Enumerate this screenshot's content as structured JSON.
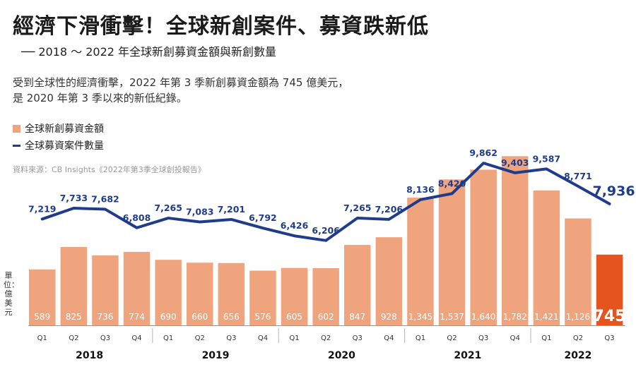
{
  "title": "經濟下滑衝擊！全球新創案件、募資跌新低",
  "subtitle": "── 2018 ～ 2022 年全球新創募資金額與新創數量",
  "description": {
    "line1": "受到全球性的經濟衝擊，2022 年第 3 季新創募資金額為 745 億美元，",
    "line2": "是 2020 年第 3 季以來的新低紀錄。"
  },
  "legend": {
    "bar_label": "全球新創募資金額",
    "line_label": "全球募資案件數量"
  },
  "source": "資料來源：CB Insights《2022年第3季全球創投報告》",
  "unit_label": "單位：億美元",
  "colors": {
    "bar": "#f0a47e",
    "bar_highlight": "#e5531e",
    "line": "#1f3c8c",
    "axis": "#999999"
  },
  "chart_data": {
    "type": "bar",
    "categories": [
      "Q1",
      "Q2",
      "Q3",
      "Q4",
      "Q1",
      "Q2",
      "Q3",
      "Q4",
      "Q1",
      "Q2",
      "Q3",
      "Q4",
      "Q1",
      "Q2",
      "Q3",
      "Q4",
      "Q1",
      "Q2",
      "Q3"
    ],
    "years": [
      {
        "label": "2018",
        "start": 0,
        "end": 3
      },
      {
        "label": "2019",
        "start": 4,
        "end": 7
      },
      {
        "label": "2020",
        "start": 8,
        "end": 11
      },
      {
        "label": "2021",
        "start": 12,
        "end": 15
      },
      {
        "label": "2022",
        "start": 16,
        "end": 18
      }
    ],
    "series": [
      {
        "name": "全球新創募資金額",
        "type": "bar",
        "values": [
          589,
          825,
          736,
          774,
          690,
          660,
          656,
          576,
          605,
          602,
          847,
          928,
          1345,
          1537,
          1640,
          1782,
          1421,
          1126,
          745
        ],
        "labels": [
          "589",
          "825",
          "736",
          "774",
          "690",
          "660",
          "656",
          "576",
          "605",
          "602",
          "847",
          "928",
          "1,345",
          "1,537",
          "1,640",
          "1,782",
          "1,421",
          "1,126",
          "745"
        ]
      },
      {
        "name": "全球募資案件數量",
        "type": "line",
        "values": [
          7219,
          7733,
          7682,
          6808,
          7265,
          7083,
          7201,
          6792,
          6426,
          6206,
          7265,
          7206,
          8136,
          8420,
          9862,
          9403,
          9587,
          8771,
          7936
        ],
        "labels": [
          "7,219",
          "7,733",
          "7,682",
          "6,808",
          "7,265",
          "7,083",
          "7,201",
          "6,792",
          "6,426",
          "6,206",
          "7,265",
          "7,206",
          "8,136",
          "8,420",
          "9,862",
          "9,403",
          "9,587",
          "8,771",
          "7,936"
        ]
      }
    ],
    "highlight_index": 18
  }
}
